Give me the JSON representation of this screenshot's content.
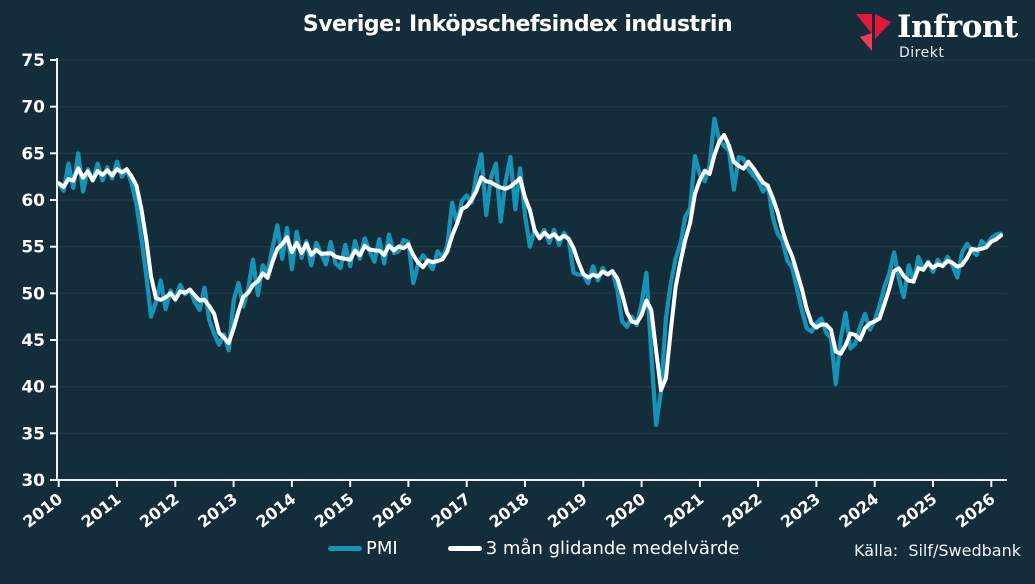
{
  "header": {
    "title": "Sverige: Inköpschefsindex industrin"
  },
  "logo": {
    "brand": "Infront",
    "sub": "Direkt",
    "icon_color": "#e6173b"
  },
  "source": "Källa:  Silf/Swedbank",
  "legend": [
    {
      "label": "PMI",
      "color": "#1694b7"
    },
    {
      "label": "3 mån glidande medelvärde",
      "color": "#ffffff"
    }
  ],
  "chart_data": {
    "type": "line",
    "title": "Sverige: Inköpschefsindex industrin",
    "xlabel": "",
    "ylabel": "",
    "frequency": "monthly",
    "x_start": "2010-01",
    "x_end": "2026-03",
    "ylim": [
      30,
      75
    ],
    "ytick_step": 5,
    "xticks": [
      2010,
      2011,
      2012,
      2013,
      2014,
      2015,
      2016,
      2017,
      2018,
      2019,
      2020,
      2021,
      2022,
      2023,
      2024,
      2025,
      2026
    ],
    "grid": "horizontal",
    "legend_position": "bottom-center",
    "background": "#132d3b",
    "series": [
      {
        "name": "PMI",
        "color": "#1694b7",
        "values": [
          61.8,
          61.0,
          63.9,
          61.3,
          65.0,
          60.9,
          63.3,
          62.1,
          63.9,
          62.1,
          63.5,
          62.3,
          64.1,
          62.5,
          63.3,
          61.8,
          59.5,
          56.0,
          52.0,
          47.5,
          49.0,
          51.4,
          48.3,
          50.3,
          49.4,
          50.9,
          49.9,
          50.4,
          49.1,
          48.2,
          50.6,
          47.1,
          45.7,
          44.5,
          45.6,
          43.9,
          49.2,
          51.1,
          48.6,
          50.5,
          53.6,
          49.8,
          53.0,
          52.2,
          54.8,
          57.3,
          53.7,
          57.0,
          52.6,
          56.6,
          53.8,
          55.6,
          53.0,
          55.4,
          54.3,
          53.1,
          55.5,
          53.2,
          52.7,
          55.2,
          52.9,
          55.6,
          53.7,
          55.9,
          54.5,
          53.4,
          55.8,
          53.2,
          56.3,
          54.3,
          54.5,
          55.7,
          55.5,
          51.1,
          53.2,
          54.1,
          53.3,
          52.6,
          54.5,
          53.8,
          55.1,
          59.7,
          57.5,
          59.9,
          60.5,
          59.7,
          62.7,
          64.9,
          58.4,
          62.4,
          63.9,
          57.7,
          62.0,
          64.6,
          59.0,
          63.4,
          58.4,
          55.0,
          56.8,
          55.9,
          56.8,
          55.4,
          56.8,
          55.2,
          56.5,
          55.8,
          52.2,
          52.0,
          52.0,
          51.1,
          52.9,
          51.4,
          52.7,
          52.0,
          52.4,
          50.4,
          47.0,
          46.4,
          47.5,
          46.6,
          48.9,
          52.2,
          43.5,
          35.9,
          39.5,
          47.3,
          51.0,
          53.7,
          55.3,
          58.2,
          59.1,
          64.7,
          62.7,
          62.0,
          63.7,
          68.7,
          66.4,
          65.8,
          65.3,
          61.1,
          64.6,
          64.4,
          63.3,
          62.6,
          62.1,
          60.9,
          61.6,
          58.2,
          56.4,
          55.7,
          53.5,
          52.8,
          50.5,
          48.2,
          46.3,
          45.9,
          46.8,
          47.3,
          45.8,
          45.2,
          40.3,
          45.1,
          47.9,
          44.1,
          44.6,
          46.4,
          47.8,
          46.1,
          47.1,
          48.7,
          50.7,
          52.1,
          54.4,
          51.5,
          49.6,
          53.0,
          51.2,
          53.9,
          52.5,
          53.4,
          52.3,
          53.6,
          52.9,
          53.9,
          53.0,
          51.7,
          54.4,
          55.3,
          54.6,
          54.1,
          55.6,
          55.1,
          55.9,
          56.3,
          56.4
        ]
      },
      {
        "name": "3 mån glidande medelvärde",
        "color": "#ffffff",
        "derived": "trailing 3-month moving average of PMI series"
      }
    ]
  }
}
